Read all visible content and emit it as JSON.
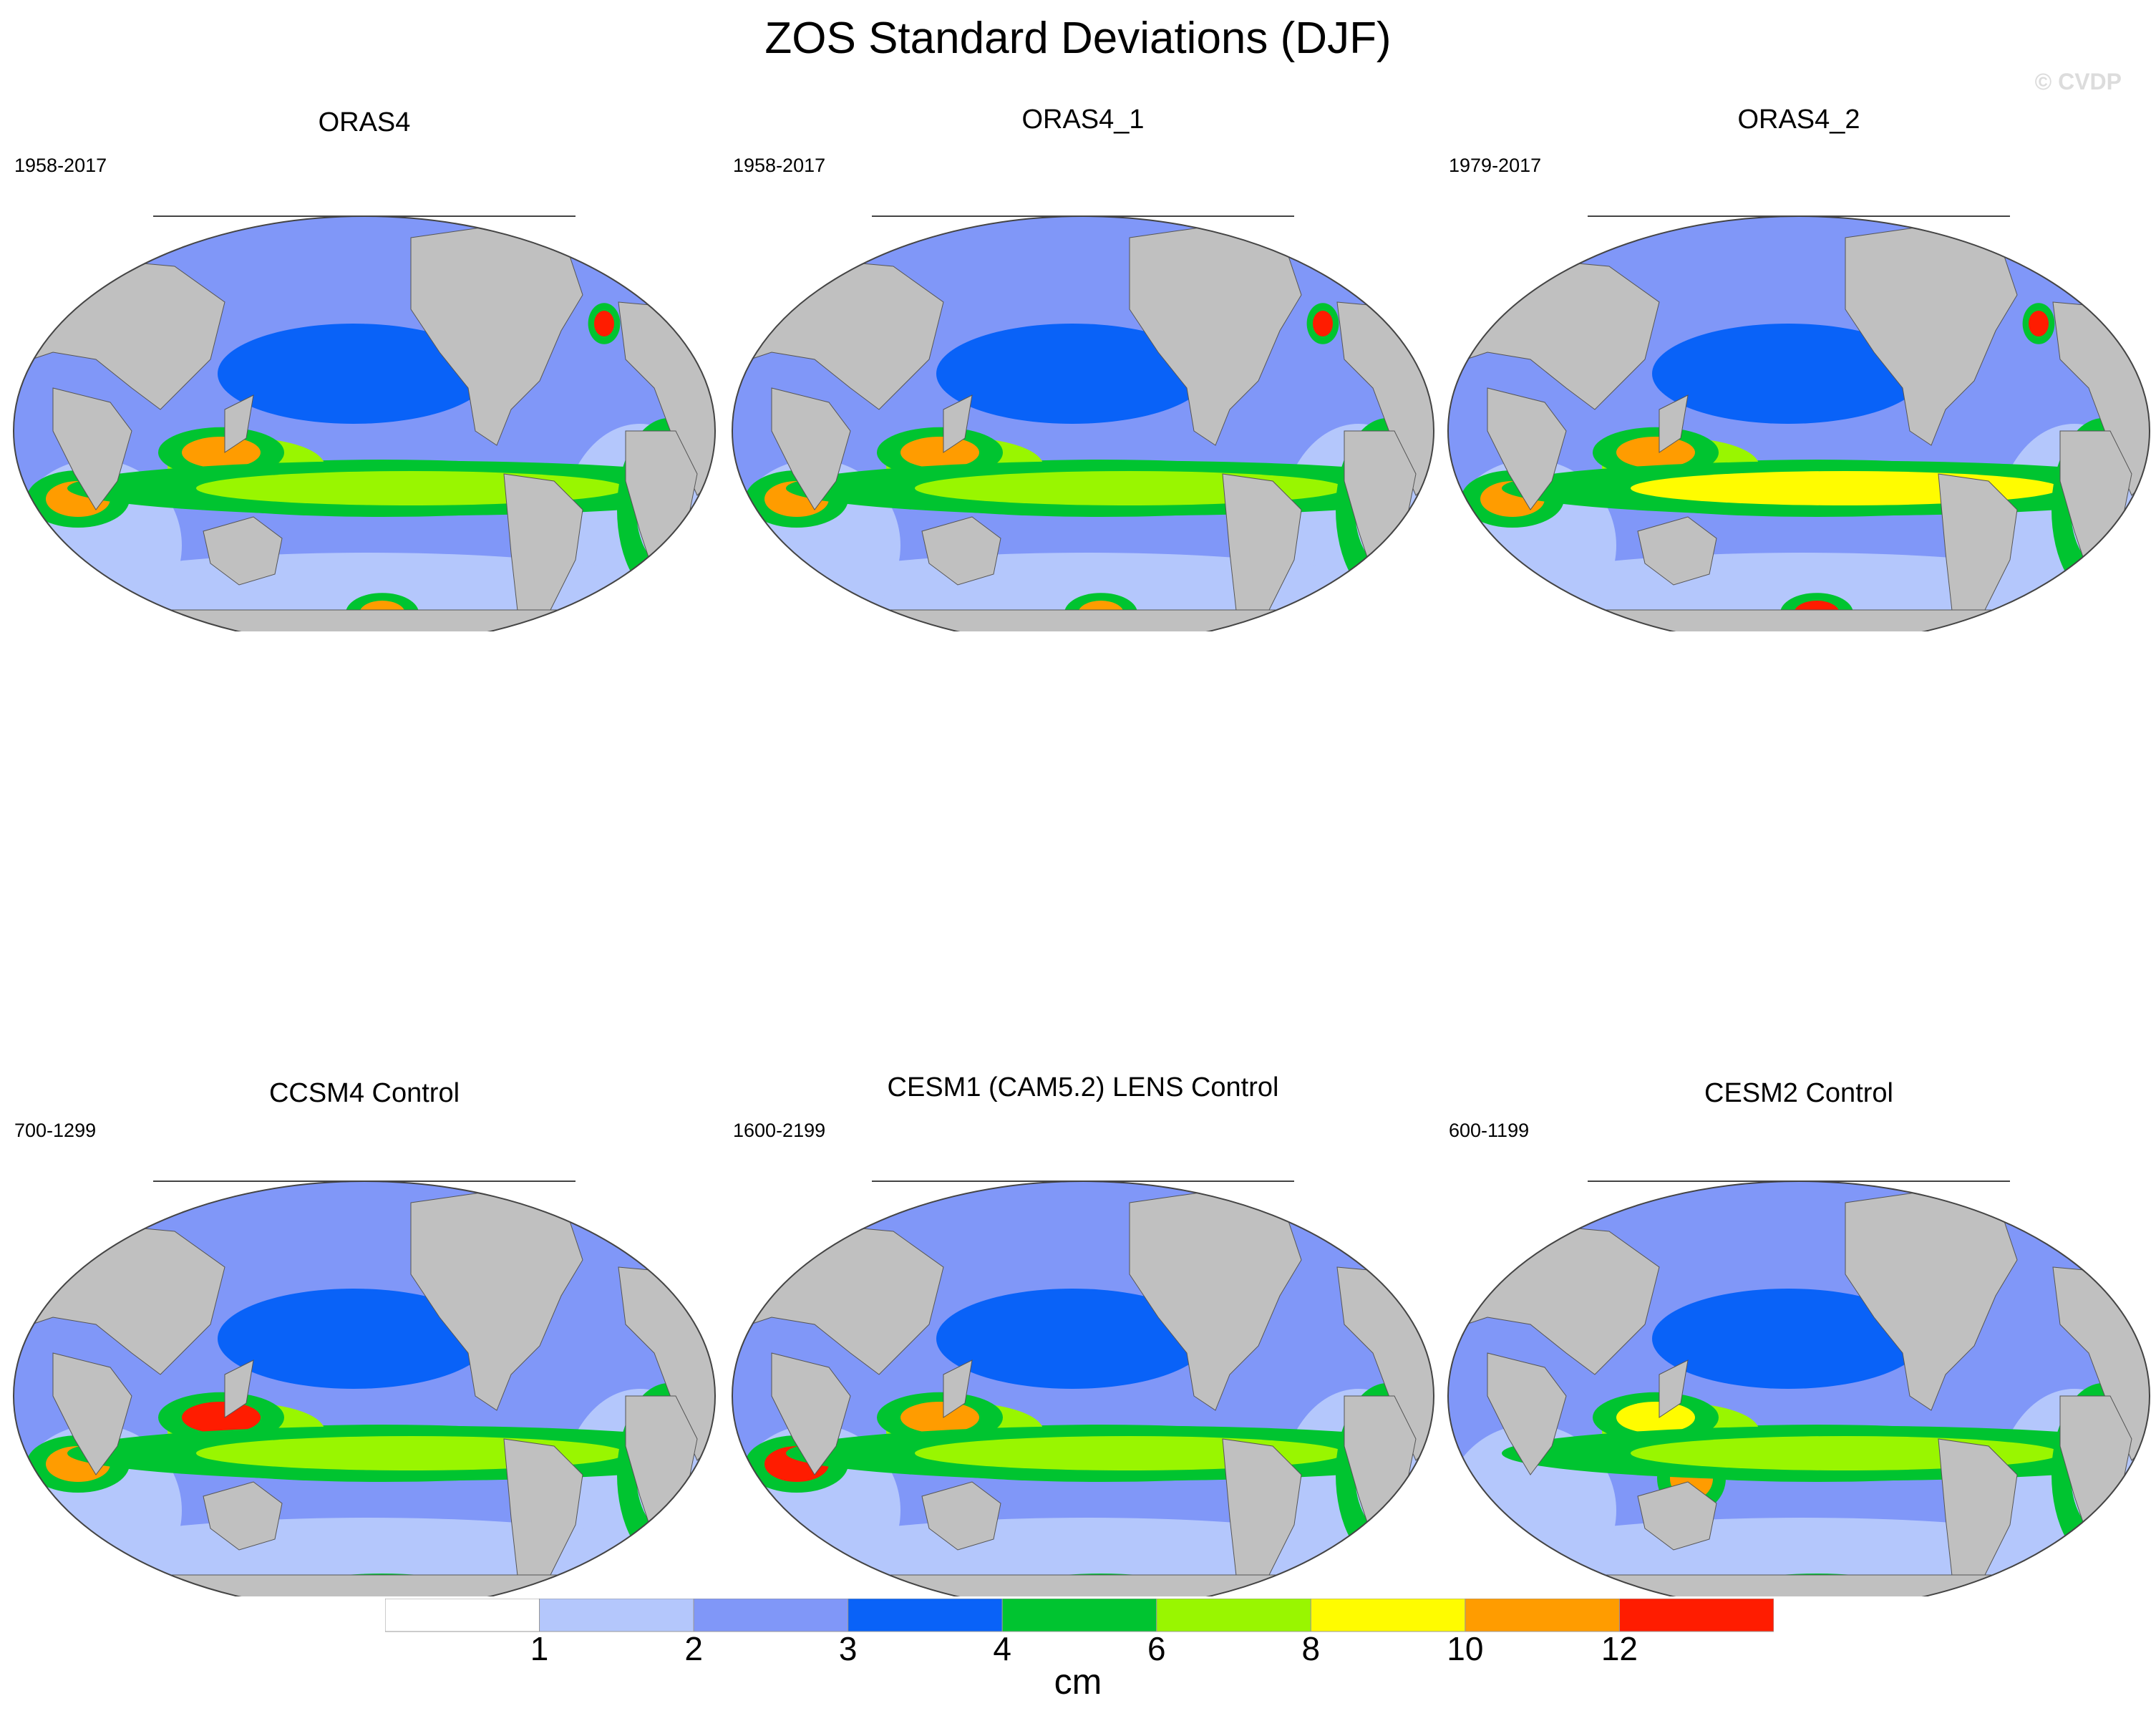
{
  "title": "ZOS Standard Deviations (DJF)",
  "watermark": "© CVDP",
  "chart_data": {
    "type": "heatmap",
    "title": "ZOS Standard Deviations (DJF)",
    "projection": "Robinson (Pacific-centered)",
    "panels": [
      {
        "name": "ORAS4",
        "period": "1958-2017",
        "hotspots": [
          {
            "region": "western tropical Pacific",
            "level": 10
          },
          {
            "region": "western Indian Ocean",
            "level": 10
          },
          {
            "region": "Southern Ocean (Pacific sector)",
            "level": 10
          },
          {
            "region": "northwest Atlantic",
            "level": 12
          },
          {
            "region": "equatorial Pacific band",
            "level": 6
          },
          {
            "region": "eastern Atlantic",
            "level": 1
          }
        ]
      },
      {
        "name": "ORAS4_1",
        "period": "1958-2017",
        "hotspots": [
          {
            "region": "western tropical Pacific",
            "level": 10
          },
          {
            "region": "western Indian Ocean",
            "level": 10
          },
          {
            "region": "Southern Ocean (Pacific sector)",
            "level": 10
          },
          {
            "region": "northwest Atlantic",
            "level": 12
          },
          {
            "region": "equatorial Pacific band",
            "level": 6
          },
          {
            "region": "eastern Atlantic",
            "level": 1
          }
        ]
      },
      {
        "name": "ORAS4_2",
        "period": "1979-2017",
        "hotspots": [
          {
            "region": "western tropical Pacific",
            "level": 10
          },
          {
            "region": "western Indian Ocean",
            "level": 10
          },
          {
            "region": "Southern Ocean (Pacific sector)",
            "level": 12
          },
          {
            "region": "northwest Atlantic",
            "level": 12
          },
          {
            "region": "equatorial Pacific band",
            "level": 8
          },
          {
            "region": "eastern Atlantic",
            "level": 1
          }
        ]
      },
      {
        "name": "CCSM4 Control",
        "period": "700-1299",
        "hotspots": [
          {
            "region": "western tropical Pacific",
            "level": 12
          },
          {
            "region": "western Indian Ocean",
            "level": 10
          },
          {
            "region": "equatorial Pacific band",
            "level": 6
          },
          {
            "region": "Southern Ocean",
            "level": 4
          },
          {
            "region": "eastern Atlantic",
            "level": 1
          }
        ]
      },
      {
        "name": "CESM1 (CAM5.2) LENS Control",
        "period": "1600-2199",
        "hotspots": [
          {
            "region": "western Indian Ocean",
            "level": 12
          },
          {
            "region": "western tropical Pacific",
            "level": 10
          },
          {
            "region": "equatorial Pacific band",
            "level": 6
          },
          {
            "region": "Southern Ocean",
            "level": 4
          },
          {
            "region": "eastern Atlantic",
            "level": 1
          }
        ]
      },
      {
        "name": "CESM2 Control",
        "period": "600-1199",
        "hotspots": [
          {
            "region": "western tropical Pacific",
            "level": 8
          },
          {
            "region": "Indonesian seas",
            "level": 10
          },
          {
            "region": "equatorial Pacific band",
            "level": 6
          },
          {
            "region": "Southern Ocean",
            "level": 4
          },
          {
            "region": "eastern Atlantic",
            "level": 1
          }
        ]
      }
    ],
    "colorbar": {
      "unit": "cm",
      "tick_labels": [
        "1",
        "2",
        "3",
        "4",
        "6",
        "8",
        "10",
        "12"
      ],
      "bins": [
        {
          "range": "<1",
          "color": "#ffffff"
        },
        {
          "range": "1-2",
          "color": "#b4c7fc"
        },
        {
          "range": "2-3",
          "color": "#8097f8"
        },
        {
          "range": "3-4",
          "color": "#0962f8"
        },
        {
          "range": "4-6",
          "color": "#00c430"
        },
        {
          "range": "6-8",
          "color": "#99f600"
        },
        {
          "range": "8-10",
          "color": "#fffc00"
        },
        {
          "range": "10-12",
          "color": "#ff9c00"
        },
        {
          "range": ">12",
          "color": "#ff1c00"
        }
      ]
    },
    "land_color": "#c0c0c0"
  }
}
